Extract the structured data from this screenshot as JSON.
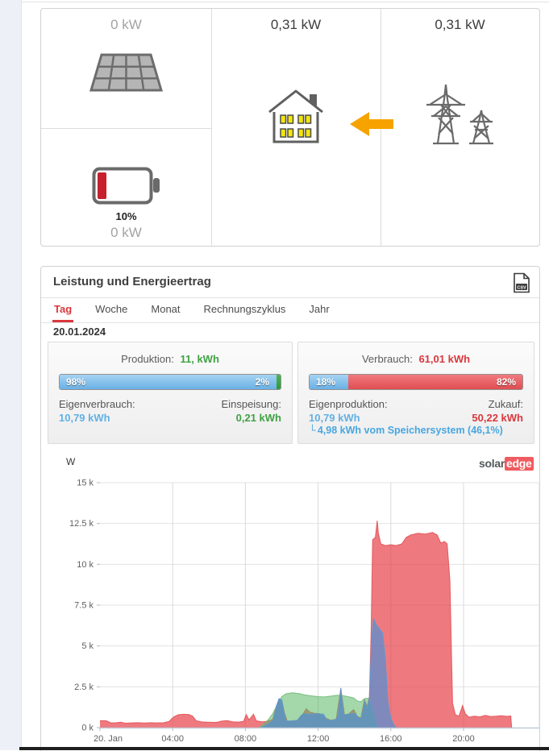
{
  "power_flow": {
    "pv": {
      "power": "0 kW"
    },
    "battery": {
      "soc": "10%",
      "power": "0 kW"
    },
    "house": {
      "power": "0,31 kW"
    },
    "grid": {
      "power": "0,31 kW"
    }
  },
  "panel": {
    "title": "Leistung und Energieertrag",
    "tabs": [
      "Tag",
      "Woche",
      "Monat",
      "Rechnungszyklus",
      "Jahr"
    ],
    "active_tab": "Tag",
    "date": "20.01.2024",
    "production": {
      "label": "Produktion:",
      "value": "11, kWh",
      "bar": {
        "left_pct": "98%",
        "right_pct": "2%",
        "left_width": 98,
        "right_width": 2
      },
      "self_consumption_label": "Eigenverbrauch:",
      "self_consumption_value": "10,79 kWh",
      "feed_in_label": "Einspeisung:",
      "feed_in_value": "0,21 kWh"
    },
    "consumption": {
      "label": "Verbrauch:",
      "value": "61,01 kWh",
      "bar": {
        "left_pct": "18%",
        "right_pct": "82%",
        "left_width": 18,
        "right_width": 82
      },
      "self_production_label": "Eigenproduktion:",
      "self_production_value": "10,79 kWh",
      "purchased_label": "Zukauf:",
      "purchased_value": "50,22 kWh",
      "storage_arrow": "└",
      "storage_note": "4,98 kWh vom Speichersystem (46,1%)"
    }
  },
  "icons": {
    "csv_label": "CSV"
  },
  "brand": {
    "part1": "solar",
    "part2": "edge"
  },
  "colors": {
    "tab_active": "#d9383d",
    "green_value": "#3fa143",
    "blue_value": "#62b0e3",
    "red_value": "#d9383d",
    "storage_blue": "#47a7e0",
    "arrow_orange": "#f6a300",
    "battery_red": "#c5202c"
  },
  "chart_data": {
    "type": "area",
    "unit_label": "W",
    "ylim": [
      0,
      15000
    ],
    "xlim_hours": [
      0,
      24.17
    ],
    "grid": true,
    "y_ticks": [
      {
        "value": 0,
        "label": "0 k"
      },
      {
        "value": 2500,
        "label": "2.5 k"
      },
      {
        "value": 5000,
        "label": "5 k"
      },
      {
        "value": 7500,
        "label": "7.5 k"
      },
      {
        "value": 10000,
        "label": "10 k"
      },
      {
        "value": 12500,
        "label": "12.5 k"
      },
      {
        "value": 15000,
        "label": "15 k"
      }
    ],
    "x_ticks": [
      {
        "hour": 0,
        "label": "20. Jan"
      },
      {
        "hour": 4,
        "label": "04:00"
      },
      {
        "hour": 8,
        "label": "08:00"
      },
      {
        "hour": 12,
        "label": "12:00"
      },
      {
        "hour": 16,
        "label": "16:00"
      },
      {
        "hour": 20,
        "label": "20:00"
      }
    ],
    "series": [
      {
        "name": "Verbrauch",
        "fill": "#e8474e",
        "stroke": "#e04a50",
        "opacity": 0.72,
        "points": [
          [
            0,
            430
          ],
          [
            0.35,
            420
          ],
          [
            0.6,
            290
          ],
          [
            0.9,
            300
          ],
          [
            1.15,
            330
          ],
          [
            1.4,
            270
          ],
          [
            1.7,
            290
          ],
          [
            2.1,
            300
          ],
          [
            2.45,
            280
          ],
          [
            2.8,
            300
          ],
          [
            3.1,
            290
          ],
          [
            3.5,
            300
          ],
          [
            3.8,
            380
          ],
          [
            4.05,
            650
          ],
          [
            4.3,
            790
          ],
          [
            4.6,
            820
          ],
          [
            4.9,
            800
          ],
          [
            5.1,
            700
          ],
          [
            5.3,
            420
          ],
          [
            5.6,
            350
          ],
          [
            6,
            330
          ],
          [
            6.4,
            320
          ],
          [
            6.7,
            400
          ],
          [
            7,
            430
          ],
          [
            7.3,
            360
          ],
          [
            7.6,
            340
          ],
          [
            7.9,
            380
          ],
          [
            8.05,
            800
          ],
          [
            8.2,
            480
          ],
          [
            8.45,
            820
          ],
          [
            8.6,
            420
          ],
          [
            8.9,
            360
          ],
          [
            9.2,
            380
          ],
          [
            9.5,
            500
          ],
          [
            9.7,
            1300
          ],
          [
            9.85,
            1750
          ],
          [
            10,
            1700
          ],
          [
            10.15,
            900
          ],
          [
            10.3,
            400
          ],
          [
            10.6,
            420
          ],
          [
            10.9,
            450
          ],
          [
            11.15,
            800
          ],
          [
            11.35,
            1150
          ],
          [
            11.55,
            950
          ],
          [
            11.8,
            880
          ],
          [
            12.1,
            860
          ],
          [
            12.4,
            600
          ],
          [
            12.7,
            450
          ],
          [
            13,
            520
          ],
          [
            13.25,
            2420
          ],
          [
            13.45,
            780
          ],
          [
            13.7,
            850
          ],
          [
            13.95,
            1100
          ],
          [
            14.15,
            700
          ],
          [
            14.35,
            600
          ],
          [
            14.55,
            1700
          ],
          [
            14.7,
            1300
          ],
          [
            14.82,
            1900
          ],
          [
            14.92,
            6000
          ],
          [
            15,
            11500
          ],
          [
            15.15,
            11650
          ],
          [
            15.25,
            12680
          ],
          [
            15.32,
            11900
          ],
          [
            15.45,
            11250
          ],
          [
            15.7,
            11150
          ],
          [
            16,
            11200
          ],
          [
            16.3,
            11150
          ],
          [
            16.6,
            11250
          ],
          [
            16.85,
            11650
          ],
          [
            17.1,
            11800
          ],
          [
            17.5,
            11900
          ],
          [
            17.9,
            11850
          ],
          [
            18.3,
            11950
          ],
          [
            18.55,
            11800
          ],
          [
            18.75,
            11300
          ],
          [
            18.95,
            11400
          ],
          [
            19.1,
            11250
          ],
          [
            19.25,
            9000
          ],
          [
            19.4,
            1500
          ],
          [
            19.55,
            800
          ],
          [
            19.75,
            700
          ],
          [
            19.95,
            1350
          ],
          [
            20.1,
            850
          ],
          [
            20.3,
            640
          ],
          [
            20.6,
            700
          ],
          [
            20.9,
            660
          ],
          [
            21.2,
            750
          ],
          [
            21.5,
            680
          ],
          [
            21.8,
            700
          ],
          [
            22.1,
            730
          ],
          [
            22.4,
            690
          ],
          [
            22.6,
            710
          ],
          [
            22.65,
            0
          ]
        ]
      },
      {
        "name": "Produktion",
        "fill": "#59b765",
        "stroke": "#69b875",
        "opacity": 0.55,
        "points": [
          [
            8.75,
            0
          ],
          [
            9,
            220
          ],
          [
            9.25,
            480
          ],
          [
            9.5,
            850
          ],
          [
            9.75,
            1400
          ],
          [
            10,
            1900
          ],
          [
            10.25,
            2080
          ],
          [
            10.6,
            2130
          ],
          [
            10.95,
            2080
          ],
          [
            11.25,
            2010
          ],
          [
            11.6,
            1950
          ],
          [
            12,
            1900
          ],
          [
            12.35,
            1880
          ],
          [
            12.7,
            1930
          ],
          [
            13.05,
            1990
          ],
          [
            13.35,
            1960
          ],
          [
            13.65,
            1900
          ],
          [
            13.95,
            1820
          ],
          [
            14.15,
            1640
          ],
          [
            14.35,
            1580
          ],
          [
            14.55,
            1780
          ],
          [
            14.75,
            1800
          ],
          [
            14.9,
            1400
          ],
          [
            15.05,
            750
          ],
          [
            15.2,
            150
          ],
          [
            15.3,
            0
          ]
        ]
      },
      {
        "name": "Eigenverbrauch",
        "fill": "#4a90d9",
        "stroke": "#5b9bd5",
        "opacity": 0.68,
        "points": [
          [
            8.85,
            0
          ],
          [
            9.1,
            140
          ],
          [
            9.35,
            300
          ],
          [
            9.55,
            480
          ],
          [
            9.7,
            1300
          ],
          [
            9.85,
            1780
          ],
          [
            10,
            1700
          ],
          [
            10.12,
            950
          ],
          [
            10.25,
            400
          ],
          [
            10.55,
            400
          ],
          [
            10.85,
            450
          ],
          [
            11.1,
            790
          ],
          [
            11.3,
            860
          ],
          [
            11.55,
            810
          ],
          [
            11.8,
            860
          ],
          [
            12.05,
            830
          ],
          [
            12.3,
            840
          ],
          [
            12.45,
            520
          ],
          [
            12.65,
            430
          ],
          [
            12.95,
            490
          ],
          [
            13.1,
            700
          ],
          [
            13.25,
            2430
          ],
          [
            13.4,
            800
          ],
          [
            13.6,
            800
          ],
          [
            13.85,
            870
          ],
          [
            14.05,
            860
          ],
          [
            14.2,
            620
          ],
          [
            14.4,
            560
          ],
          [
            14.55,
            1600
          ],
          [
            14.7,
            1150
          ],
          [
            14.82,
            1800
          ],
          [
            14.95,
            5500
          ],
          [
            15.05,
            6700
          ],
          [
            15.18,
            6350
          ],
          [
            15.35,
            6100
          ],
          [
            15.55,
            5800
          ],
          [
            15.7,
            4200
          ],
          [
            15.85,
            1500
          ],
          [
            16,
            600
          ],
          [
            16.15,
            200
          ],
          [
            16.3,
            0
          ]
        ]
      }
    ]
  }
}
